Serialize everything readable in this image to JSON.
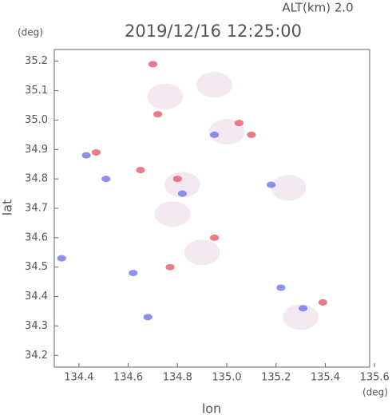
{
  "chart_data": {
    "type": "scatter",
    "title": "2019/12/16 12:25:00",
    "subtitle": "ALT(km) 2.0",
    "x_label": "lon",
    "y_label": "lat",
    "x_unit": "(deg)",
    "y_unit": "(deg)",
    "xlim": [
      134.3,
      135.58
    ],
    "ylim": [
      34.16,
      35.24
    ],
    "xticks": [
      {
        "value": 134.4,
        "label": "134.4"
      },
      {
        "value": 134.6,
        "label": "134.6"
      },
      {
        "value": 134.8,
        "label": "134.8"
      },
      {
        "value": 135.0,
        "label": "135.0"
      },
      {
        "value": 135.2,
        "label": "135.2"
      },
      {
        "value": 135.4,
        "label": "135.4"
      },
      {
        "value": 135.6,
        "label": "135.6"
      }
    ],
    "yticks": [
      {
        "value": 34.2,
        "label": "34.2"
      },
      {
        "value": 34.3,
        "label": "34.3"
      },
      {
        "value": 34.4,
        "label": "34.4"
      },
      {
        "value": 34.5,
        "label": "34.5"
      },
      {
        "value": 34.6,
        "label": "34.6"
      },
      {
        "value": 34.7,
        "label": "34.7"
      },
      {
        "value": 34.8,
        "label": "34.8"
      },
      {
        "value": 34.9,
        "label": "34.9"
      },
      {
        "value": 35.0,
        "label": "35.0"
      },
      {
        "value": 35.1,
        "label": "35.1"
      },
      {
        "value": 35.2,
        "label": "35.2"
      }
    ],
    "series": [
      {
        "color": "#f3e6ef",
        "x": [
          135.3,
          134.82,
          135.0,
          134.9,
          135.25,
          134.75,
          134.95,
          134.78
        ],
        "y": [
          34.33,
          34.78,
          34.96,
          34.55,
          34.77,
          35.08,
          35.12,
          34.68
        ]
      },
      {
        "color": "#e8646e",
        "x": [
          134.72,
          134.47,
          135.39,
          134.8,
          135.1,
          134.95,
          134.77,
          134.65,
          135.05,
          134.7
        ],
        "y": [
          35.02,
          34.89,
          34.38,
          34.8,
          34.95,
          34.6,
          34.5,
          34.83,
          34.99,
          35.19
        ]
      },
      {
        "color": "#7b7bea",
        "x": [
          134.51,
          134.82,
          135.31,
          134.43,
          135.18,
          134.62,
          134.33,
          134.68,
          134.95,
          135.22
        ],
        "y": [
          34.8,
          34.75,
          34.36,
          34.88,
          34.78,
          34.48,
          34.53,
          34.33,
          34.95,
          34.43
        ]
      }
    ]
  }
}
